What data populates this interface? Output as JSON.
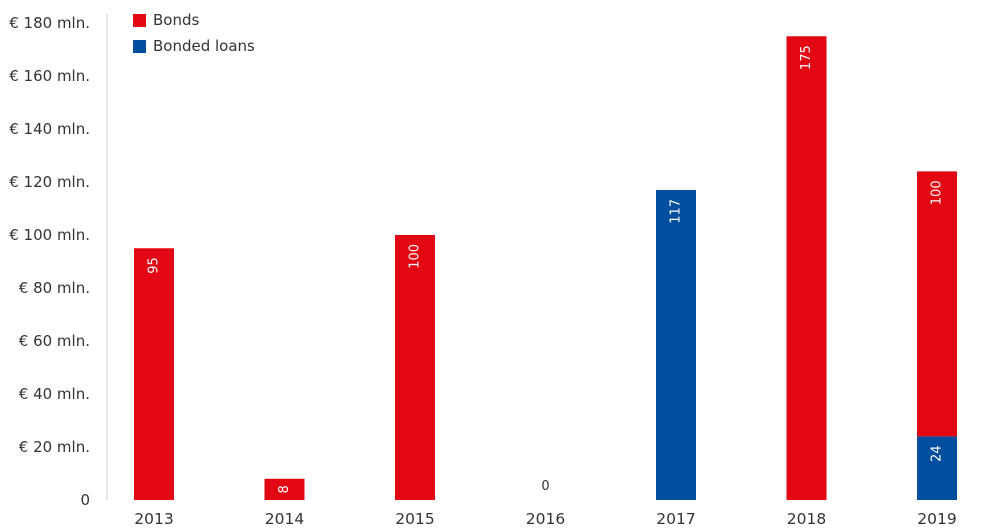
{
  "chart_data": {
    "type": "bar",
    "stacked": true,
    "categories": [
      "2013",
      "2014",
      "2015",
      "2016",
      "2017",
      "2018",
      "2019"
    ],
    "series": [
      {
        "name": "Bonded loans",
        "color": "#004f9f",
        "values": [
          0,
          0,
          0,
          0,
          117,
          0,
          24
        ]
      },
      {
        "name": "Bonds",
        "color": "#e30613",
        "values": [
          95,
          8,
          100,
          0,
          0,
          175,
          100
        ]
      }
    ],
    "data_labels": [
      {
        "category": "2013",
        "series": "Bonds",
        "text": "95"
      },
      {
        "category": "2014",
        "series": "Bonds",
        "text": "8"
      },
      {
        "category": "2015",
        "series": "Bonds",
        "text": "100"
      },
      {
        "category": "2016",
        "series": null,
        "text": "0"
      },
      {
        "category": "2017",
        "series": "Bonded loans",
        "text": "117"
      },
      {
        "category": "2018",
        "series": "Bonds",
        "text": "175"
      },
      {
        "category": "2019",
        "series": "Bonded loans",
        "text": "24"
      },
      {
        "category": "2019",
        "series": "Bonds",
        "text": "100"
      }
    ],
    "y_ticks": [
      {
        "value": 0,
        "label": "0"
      },
      {
        "value": 20,
        "label": "€ 20 mln."
      },
      {
        "value": 40,
        "label": "€ 40 mln."
      },
      {
        "value": 60,
        "label": "€ 60 mln."
      },
      {
        "value": 80,
        "label": "€ 80 mln."
      },
      {
        "value": 100,
        "label": "€ 100 mln."
      },
      {
        "value": 120,
        "label": "€ 120 mln."
      },
      {
        "value": 140,
        "label": "€ 140 mln."
      },
      {
        "value": 160,
        "label": "€ 160 mln."
      },
      {
        "value": 180,
        "label": "€ 180 mln."
      }
    ],
    "ylim": [
      0,
      180
    ],
    "legend": [
      {
        "label": "Bonds",
        "color": "#e30613"
      },
      {
        "label": "Bonded loans",
        "color": "#004f9f"
      }
    ],
    "legend_position": "top-left",
    "grid": false,
    "title": "",
    "xlabel": "",
    "ylabel": ""
  }
}
